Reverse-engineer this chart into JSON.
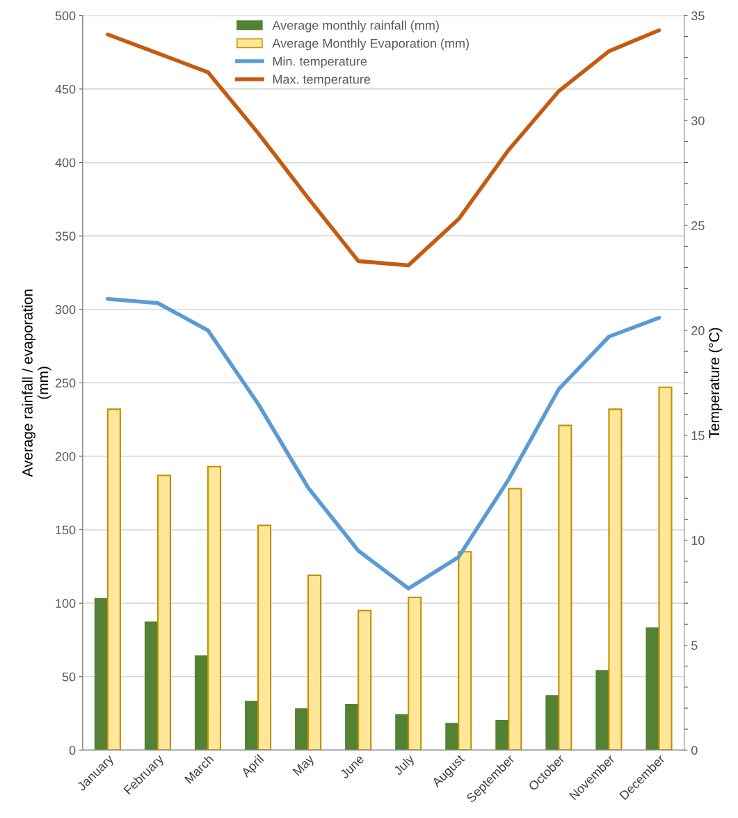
{
  "chart_data": {
    "type": "bar",
    "categories": [
      "January",
      "February",
      "March",
      "April",
      "May",
      "June",
      "July",
      "August",
      "September",
      "October",
      "November",
      "December"
    ],
    "series": [
      {
        "name": "Average monthly rainfall (mm)",
        "color": "#548235",
        "values": [
          103,
          87,
          64,
          33,
          28,
          31,
          24,
          18,
          20,
          37,
          54,
          83
        ]
      },
      {
        "name": "Average Monthly Evaporation (mm)",
        "color": "#ffe699",
        "values": [
          232,
          187,
          193,
          153,
          119,
          95,
          104,
          135,
          178,
          221,
          232,
          247
        ]
      },
      {
        "name": "Min. temperature",
        "type": "line",
        "axis": "y2",
        "color": "#5b9bd5",
        "values": [
          21.5,
          21.3,
          20.0,
          16.5,
          12.5,
          9.5,
          7.7,
          9.2,
          12.9,
          17.2,
          19.7,
          20.6
        ]
      },
      {
        "name": "Max. temperature",
        "type": "line",
        "axis": "y2",
        "color": "#c55a11",
        "values": [
          34.1,
          33.2,
          32.3,
          29.4,
          26.3,
          23.3,
          23.1,
          25.3,
          28.6,
          31.4,
          33.3,
          34.3
        ]
      }
    ],
    "ylabel": "Average rainfall / evaporation\n(mm)",
    "y2label": "Temperature (°C)",
    "ylim": [
      0,
      500
    ],
    "yticks": [
      0,
      50,
      100,
      150,
      200,
      250,
      300,
      350,
      400,
      450,
      500
    ],
    "y2lim": [
      0,
      35
    ],
    "y2ticks": [
      0,
      {
        "value": 1,
        "label": null
      },
      {
        "value": 2,
        "label": null
      },
      {
        "value": 3,
        "label": null
      },
      {
        "value": 4,
        "label": null
      },
      5,
      {
        "value": 6,
        "label": null
      },
      {
        "value": 7,
        "label": null
      },
      {
        "value": 8,
        "label": null
      },
      {
        "value": 9,
        "label": null
      },
      10,
      {
        "value": 11,
        "label": null
      },
      {
        "value": 12,
        "label": null
      },
      {
        "value": 13,
        "label": null
      },
      {
        "value": 14,
        "label": null
      },
      15,
      {
        "value": 16,
        "label": null
      },
      {
        "value": 17,
        "label": null
      },
      {
        "value": 18,
        "label": null
      },
      {
        "value": 19,
        "label": null
      },
      20,
      {
        "value": 21,
        "label": null
      },
      {
        "value": 22,
        "label": null
      },
      {
        "value": 23,
        "label": null
      },
      {
        "value": 24,
        "label": null
      },
      25,
      {
        "value": 26,
        "label": null
      },
      {
        "value": 27,
        "label": null
      },
      {
        "value": 28,
        "label": null
      },
      {
        "value": 29,
        "label": null
      },
      30,
      {
        "value": 31,
        "label": null
      },
      {
        "value": 32,
        "label": null
      },
      {
        "value": 33,
        "label": null
      },
      {
        "value": 34,
        "label": null
      },
      35
    ],
    "grid": "y",
    "legend": "top"
  }
}
